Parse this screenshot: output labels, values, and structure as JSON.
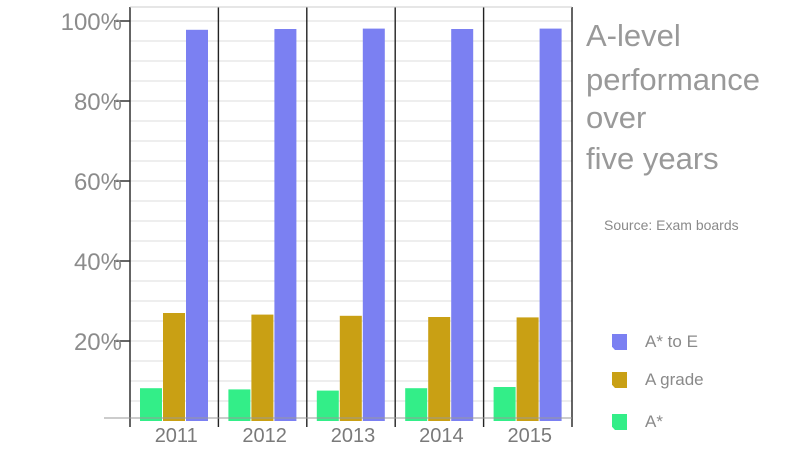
{
  "chart_data": {
    "type": "bar",
    "title_lines": [
      "A-level",
      "performance",
      "over",
      "five years"
    ],
    "source": "Source: Exam boards",
    "categories": [
      "2011",
      "2012",
      "2013",
      "2014",
      "2015"
    ],
    "series": [
      {
        "name": "A*",
        "color": "#33ee88",
        "values": [
          8.2,
          7.9,
          7.6,
          8.2,
          8.5
        ]
      },
      {
        "name": "A grade",
        "color": "#c9a014",
        "values": [
          27.0,
          26.6,
          26.3,
          26.0,
          25.9
        ]
      },
      {
        "name": "A* to E",
        "color": "#7b80f2",
        "values": [
          97.8,
          98.0,
          98.1,
          98.0,
          98.1
        ]
      }
    ],
    "legend_order": [
      "A* to E",
      "A grade",
      "A*"
    ],
    "y_ticks": [
      {
        "value": 20,
        "label": "20%"
      },
      {
        "value": 40,
        "label": "40%"
      },
      {
        "value": 60,
        "label": "60%"
      },
      {
        "value": 80,
        "label": "80%"
      },
      {
        "value": 100,
        "label": "100%"
      }
    ],
    "ylim": [
      0,
      100
    ],
    "grid": true,
    "legend_position": "right"
  }
}
